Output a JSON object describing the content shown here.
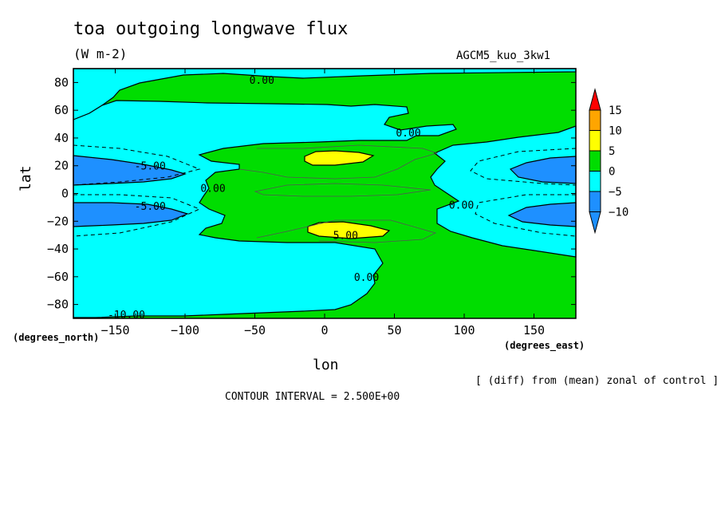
{
  "chart_data": {
    "type": "contour",
    "title": "toa outgoing longwave flux",
    "subtitle": "(W m-2)",
    "run_label": "AGCM5_kuo_3kw1",
    "xlabel": "lon",
    "ylabel": "lat",
    "x_units_label": "(degrees_east)",
    "y_units_label": "(degrees_north)",
    "xlim": [
      -180,
      180
    ],
    "ylim": [
      -90,
      90
    ],
    "x_ticks": [
      -150,
      -100,
      -50,
      0,
      50,
      100,
      150
    ],
    "y_ticks": [
      -80,
      -60,
      -40,
      -20,
      0,
      20,
      40,
      60,
      80
    ],
    "x_tick_labels": [
      "−150",
      "−100",
      "−50",
      "0",
      "50",
      "100",
      "150"
    ],
    "y_tick_labels": [
      "−80",
      "−60",
      "−40",
      "−20",
      "0",
      "20",
      "40",
      "60",
      "80"
    ],
    "contour_interval": 2.5,
    "contour_interval_label": "CONTOUR INTERVAL = 2.500E+00",
    "note": "[ (diff) from (mean) zonal of control ]",
    "contour_labels": [
      {
        "text": "0.00",
        "lon": -45,
        "lat": 82
      },
      {
        "text": "0.00",
        "lon": 60,
        "lat": 44
      },
      {
        "text": "-5.00",
        "lon": -125,
        "lat": 20
      },
      {
        "text": "0.00",
        "lon": -80,
        "lat": 4
      },
      {
        "text": "-5.00",
        "lon": -125,
        "lat": -9
      },
      {
        "text": "0.00",
        "lon": 98,
        "lat": -8
      },
      {
        "text": "5.00",
        "lon": 15,
        "lat": -30
      },
      {
        "text": "0.00",
        "lon": 30,
        "lat": -60
      },
      {
        "text": "-10.00",
        "lon": -142,
        "lat": -87
      }
    ],
    "colorbar": {
      "levels": [
        -10,
        -5,
        0,
        5,
        10,
        15
      ],
      "tick_labels": [
        "15",
        "10",
        "5",
        "0",
        "−5",
        "−10"
      ],
      "colors": [
        "#1e90ff",
        "#00ffff",
        "#00dd00",
        "#ffff00",
        "#ffa500",
        "#ff0000"
      ],
      "bands": [
        "< -10",
        "-10 to -5",
        "-5 to 0",
        "0 to 5",
        "5 to 10",
        "10 to 15",
        "> 15"
      ]
    },
    "fill_colors": {
      "neg10_5": "#1e90ff",
      "neg5_0": "#00ffff",
      "pos0_5": "#00dd00",
      "pos5_10": "#ffff00"
    }
  }
}
